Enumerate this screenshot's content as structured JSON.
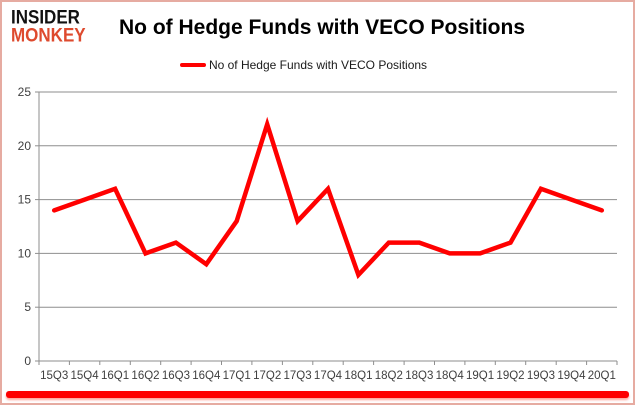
{
  "header": {
    "logo_line1": "INSIDER",
    "logo_line2": "MONKEY",
    "title": "No of Hedge Funds with VECO Positions"
  },
  "legend": {
    "label": "No of Hedge Funds with VECO Positions"
  },
  "colors": {
    "line": "#ff0000",
    "logo_black": "#111111",
    "logo_accent": "#de4a2e",
    "grid": "#8e8e8e",
    "axis_text": "#3f3f3f",
    "bottom_bar": "#fe0000"
  },
  "chart_data": {
    "type": "line",
    "title": "No of Hedge Funds with VECO Positions",
    "categories": [
      "15Q3",
      "15Q4",
      "16Q1",
      "16Q2",
      "16Q3",
      "16Q4",
      "17Q1",
      "17Q2",
      "17Q3",
      "17Q4",
      "18Q1",
      "18Q2",
      "18Q3",
      "18Q4",
      "19Q1",
      "19Q2",
      "19Q3",
      "19Q4",
      "20Q1"
    ],
    "values": [
      14,
      15,
      16,
      10,
      11,
      9,
      13,
      22,
      13,
      16,
      8,
      11,
      11,
      10,
      10,
      11,
      16,
      15,
      14
    ],
    "xlabel": "",
    "ylabel": "",
    "ylim": [
      0,
      25
    ],
    "ytick": 5,
    "grid": true,
    "legend_position": "top",
    "series_name": "No of Hedge Funds with VECO Positions"
  }
}
